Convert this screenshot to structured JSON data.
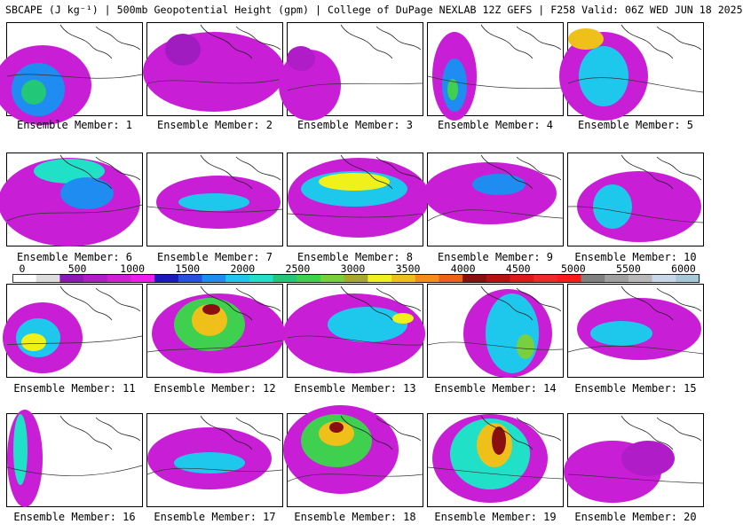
{
  "title": "SBCAPE (J kg⁻¹) | 500mb Geopotential Height (gpm) | College of DuPage NEXLAB 12Z GEFS | F258 Valid: 06Z WED JUN 18 2025",
  "member_prefix": "Ensemble Member: ",
  "members": [
    "1",
    "2",
    "3",
    "4",
    "5",
    "6",
    "7",
    "8",
    "9",
    "10",
    "11",
    "12",
    "13",
    "14",
    "15",
    "16",
    "17",
    "18",
    "19",
    "20"
  ],
  "colorbar": {
    "ticks": [
      "0",
      "500",
      "1000",
      "1500",
      "2000",
      "2500",
      "3000",
      "3500",
      "4000",
      "4500",
      "5000",
      "5500",
      "6000"
    ],
    "colors": [
      "#ffffff",
      "#dddddd",
      "#8a1cb0",
      "#b01cc8",
      "#d21ed6",
      "#ee1aee",
      "#1a1ac0",
      "#2850e0",
      "#1e8cf0",
      "#1ec8ec",
      "#20e0c8",
      "#22c878",
      "#40d050",
      "#78d040",
      "#a8a830",
      "#f0f01a",
      "#f0c01a",
      "#f09018",
      "#f06018",
      "#8a1010",
      "#b81010",
      "#e01818",
      "#f02828",
      "#ff1818",
      "#808080",
      "#a0a0a0",
      "#b8b8b8",
      "#c8d8e8",
      "#a8c8d8"
    ]
  }
}
